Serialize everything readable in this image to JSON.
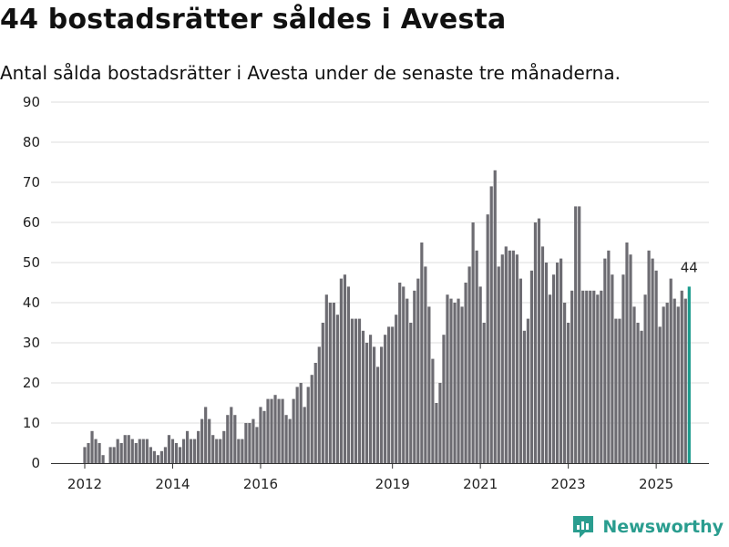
{
  "chart_data": {
    "type": "bar",
    "title": "44 bostadsrätter såldes i Avesta",
    "subtitle": "Antal sålda bostadsrätter i Avesta under de senaste tre månaderna.",
    "xlabel": "",
    "ylabel": "",
    "ylim": [
      0,
      90
    ],
    "yticks": [
      "0",
      "10",
      "20",
      "30",
      "40",
      "50",
      "60",
      "70",
      "80",
      "90"
    ],
    "xticks": [
      "2012",
      "2014",
      "2016",
      "2019",
      "2021",
      "2023",
      "2025"
    ],
    "xtick_index": [
      0,
      24,
      48,
      84,
      108,
      132,
      156
    ],
    "highlight_label": "44",
    "colors": {
      "bar": "#6d6c72",
      "highlight": "#1a9b8c",
      "grid": "#dddddd",
      "axis": "#333333"
    },
    "values": [
      4,
      5,
      8,
      6,
      5,
      2,
      0,
      4,
      4,
      6,
      5,
      7,
      7,
      6,
      5,
      6,
      6,
      6,
      4,
      3,
      2,
      3,
      4,
      7,
      6,
      5,
      4,
      6,
      8,
      6,
      6,
      8,
      11,
      14,
      11,
      7,
      6,
      6,
      8,
      12,
      14,
      12,
      6,
      6,
      10,
      10,
      11,
      9,
      14,
      13,
      16,
      16,
      17,
      16,
      16,
      12,
      11,
      16,
      19,
      20,
      14,
      19,
      22,
      25,
      29,
      35,
      42,
      40,
      40,
      37,
      46,
      47,
      44,
      36,
      36,
      36,
      33,
      30,
      32,
      29,
      24,
      29,
      32,
      34,
      34,
      37,
      45,
      44,
      41,
      35,
      43,
      46,
      55,
      49,
      39,
      26,
      15,
      20,
      32,
      42,
      41,
      40,
      41,
      39,
      45,
      49,
      60,
      53,
      44,
      35,
      62,
      69,
      73,
      49,
      52,
      54,
      53,
      53,
      52,
      46,
      33,
      36,
      48,
      60,
      61,
      54,
      50,
      42,
      47,
      50,
      51,
      40,
      35,
      43,
      64,
      64,
      43,
      43,
      43,
      43,
      42,
      43,
      51,
      53,
      47,
      36,
      36,
      47,
      55,
      52,
      39,
      35,
      33,
      42,
      53,
      51,
      48,
      34,
      39,
      40,
      46,
      41,
      39,
      43,
      41,
      44
    ]
  },
  "brand": {
    "name": "Newsworthy",
    "icon": "newsworthy-logo-icon"
  }
}
